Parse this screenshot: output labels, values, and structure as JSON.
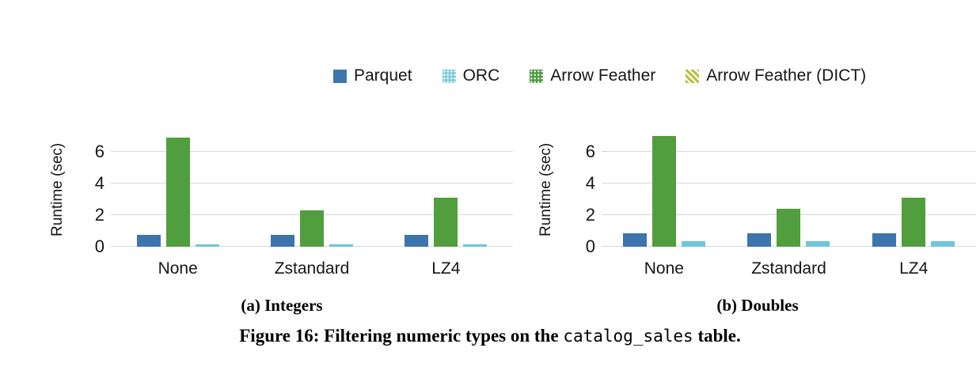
{
  "figure": {
    "caption_prefix": "Figure 16: Filtering numeric types on the ",
    "caption_code": "catalog_sales",
    "caption_suffix": " table."
  },
  "legend": {
    "items": [
      {
        "label": "Parquet",
        "color": "#3D76AD",
        "pattern": "solid"
      },
      {
        "label": "ORC",
        "color": "#7FCEDD",
        "pattern": "dots"
      },
      {
        "label": "Arrow Feather",
        "color": "#4E9A44",
        "pattern": "dots"
      },
      {
        "label": "Arrow Feather (DICT)",
        "color": "#BCBF3F",
        "pattern": "stripes"
      }
    ]
  },
  "chart_data": [
    {
      "type": "bar",
      "title": "(a) Integers",
      "ylabel": "Runtime (sec)",
      "categories": [
        "None",
        "Zstandard",
        "LZ4"
      ],
      "yticks": [
        0,
        2,
        4,
        6
      ],
      "ylim": [
        0,
        7.2
      ],
      "grid": true,
      "series": [
        {
          "name": "Parquet",
          "color": "#3C74AE",
          "values": [
            0.75,
            0.75,
            0.75
          ]
        },
        {
          "name": "Arrow Feather",
          "color": "#519E3E",
          "values": [
            6.9,
            2.3,
            3.1
          ]
        },
        {
          "name": "ORC",
          "color": "#6EC6DA",
          "values": [
            0.17,
            0.15,
            0.15
          ]
        },
        {
          "name": "Arrow Feather (DICT)",
          "color": "#BCBF3F",
          "values": [
            0,
            0,
            0
          ]
        }
      ]
    },
    {
      "type": "bar",
      "title": "(b) Doubles",
      "ylabel": "Runtime (sec)",
      "categories": [
        "None",
        "Zstandard",
        "LZ4"
      ],
      "yticks": [
        0,
        2,
        4,
        6
      ],
      "ylim": [
        0,
        7.2
      ],
      "grid": true,
      "series": [
        {
          "name": "Parquet",
          "color": "#3C74AE",
          "values": [
            0.85,
            0.85,
            0.85
          ]
        },
        {
          "name": "Arrow Feather",
          "color": "#519E3E",
          "values": [
            7.0,
            2.4,
            3.1
          ]
        },
        {
          "name": "ORC",
          "color": "#6EC6DA",
          "values": [
            0.35,
            0.35,
            0.35
          ]
        },
        {
          "name": "Arrow Feather (DICT)",
          "color": "#BCBF3F",
          "values": [
            0,
            0,
            0
          ]
        }
      ]
    }
  ]
}
